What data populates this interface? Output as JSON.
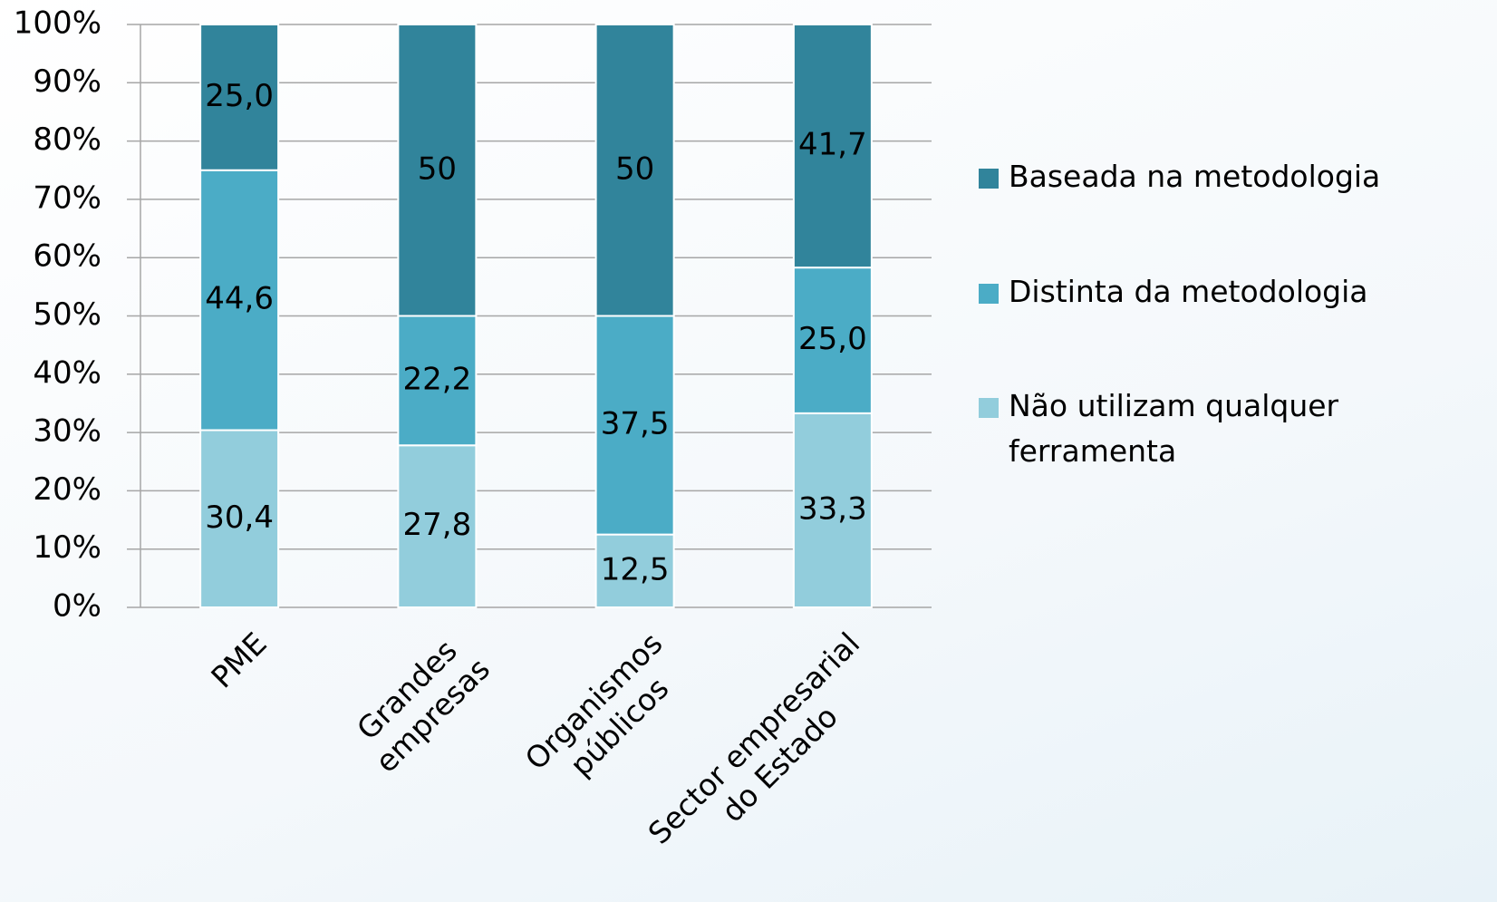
{
  "chart_data": {
    "type": "bar",
    "stacked": true,
    "categories": [
      "PME",
      "Grandes\nempresas",
      "Organismos\npúblicos",
      "Sector empresarial\ndo Estado"
    ],
    "series": [
      {
        "name": "Não utilizam qualquer ferramenta",
        "color": "#92cddc",
        "values": [
          30.4,
          27.8,
          12.5,
          33.3
        ],
        "value_labels": [
          "30,4",
          "27,8",
          "12,5",
          "33,3"
        ]
      },
      {
        "name": "Distinta da metodologia",
        "color": "#4bacc6",
        "values": [
          44.6,
          22.2,
          37.5,
          25.0
        ],
        "value_labels": [
          "44,6",
          "22,2",
          "37,5",
          "25,0"
        ]
      },
      {
        "name": "Baseada na metodologia",
        "color": "#31849b",
        "values": [
          25.0,
          50,
          50,
          41.7
        ],
        "value_labels": [
          "25,0",
          "50",
          "50",
          "41,7"
        ]
      }
    ],
    "ylim": [
      0,
      100
    ],
    "yticks": [
      {
        "value": 0,
        "label": "0%"
      },
      {
        "value": 10,
        "label": "10%"
      },
      {
        "value": 20,
        "label": "20%"
      },
      {
        "value": 30,
        "label": "30%"
      },
      {
        "value": 40,
        "label": "40%"
      },
      {
        "value": 50,
        "label": "50%"
      },
      {
        "value": 60,
        "label": "60%"
      },
      {
        "value": 70,
        "label": "70%"
      },
      {
        "value": 80,
        "label": "80%"
      },
      {
        "value": 90,
        "label": "90%"
      },
      {
        "value": 100,
        "label": "100%"
      }
    ],
    "grid": true,
    "legend": "right"
  }
}
